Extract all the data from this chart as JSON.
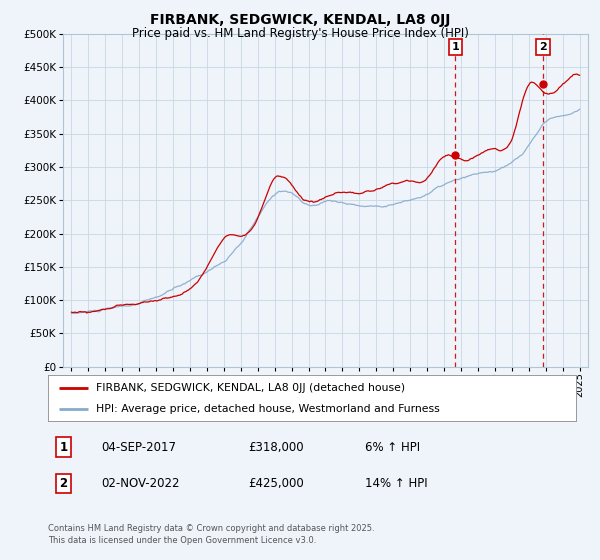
{
  "title": "FIRBANK, SEDGWICK, KENDAL, LA8 0JJ",
  "subtitle": "Price paid vs. HM Land Registry's House Price Index (HPI)",
  "line1_label": "FIRBANK, SEDGWICK, KENDAL, LA8 0JJ (detached house)",
  "line2_label": "HPI: Average price, detached house, Westmorland and Furness",
  "line1_color": "#cc0000",
  "line2_color": "#88aacc",
  "vline_color": "#cc0000",
  "annotation1": {
    "label": "1",
    "date_str": "04-SEP-2017",
    "price": "£318,000",
    "hpi": "6% ↑ HPI",
    "x_year": 2017.67,
    "y_val": 318000
  },
  "annotation2": {
    "label": "2",
    "date_str": "02-NOV-2022",
    "price": "£425,000",
    "hpi": "14% ↑ HPI",
    "x_year": 2022.84,
    "y_val": 425000
  },
  "ylim": [
    0,
    500000
  ],
  "xlim_start": 1994.5,
  "xlim_end": 2025.5,
  "xticks": [
    1995,
    1996,
    1997,
    1998,
    1999,
    2000,
    2001,
    2002,
    2003,
    2004,
    2005,
    2006,
    2007,
    2008,
    2009,
    2010,
    2011,
    2012,
    2013,
    2014,
    2015,
    2016,
    2017,
    2018,
    2019,
    2020,
    2021,
    2022,
    2023,
    2024,
    2025
  ],
  "grid_color": "#c8d8e8",
  "background_color": "#eef4fa",
  "footer": "Contains HM Land Registry data © Crown copyright and database right 2025.\nThis data is licensed under the Open Government Licence v3.0."
}
